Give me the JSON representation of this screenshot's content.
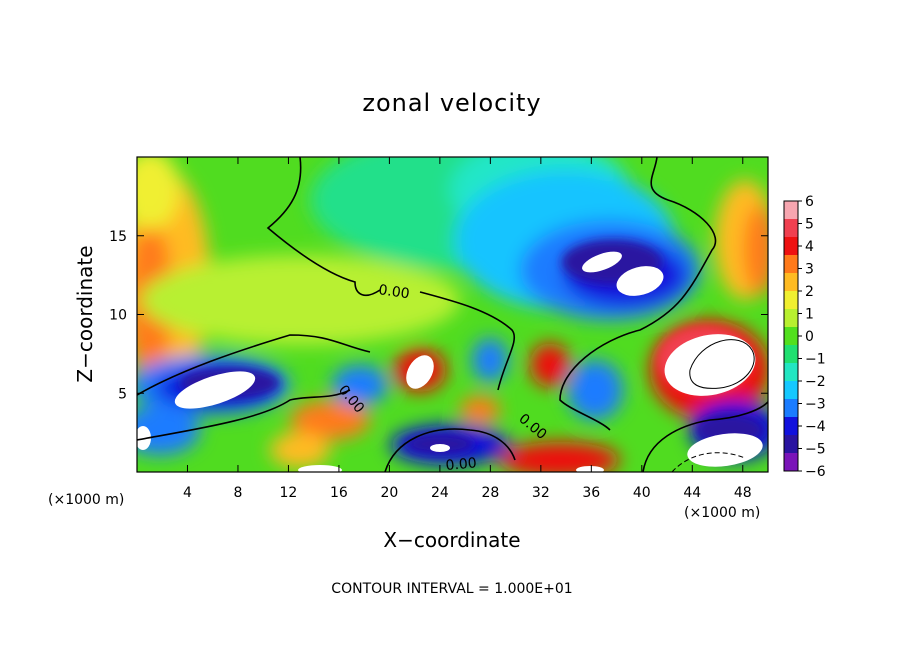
{
  "chart_data": {
    "type": "heatmap",
    "title": "zonal velocity",
    "xlabel": "X−coordinate",
    "ylabel": "Z−coordinate",
    "x_unit_left": "(×1000 m)",
    "x_unit_right": "(×1000 m)",
    "xlim": [
      0,
      50
    ],
    "ylim": [
      0,
      20
    ],
    "x_ticks": [
      "4",
      "8",
      "12",
      "16",
      "20",
      "24",
      "28",
      "32",
      "36",
      "40",
      "44",
      "48"
    ],
    "y_ticks": [
      "5",
      "10",
      "15"
    ],
    "colorbar": {
      "min": -6,
      "max": 6,
      "ticks": [
        "6",
        "5",
        "4",
        "3",
        "2",
        "1",
        "0",
        "−1",
        "−2",
        "−3",
        "−4",
        "−5",
        "−6"
      ],
      "colors": [
        "#f7a6b0",
        "#f04050",
        "#ee1111",
        "#ff7a1a",
        "#ffbb22",
        "#f0ef30",
        "#b8f030",
        "#52e01e",
        "#20e070",
        "#22e6c2",
        "#15c8ff",
        "#1a7cff",
        "#1111dd",
        "#2a14a0",
        "#7a14b8"
      ]
    },
    "contour_labels": [
      "0.00",
      "0.00",
      "0.00",
      "0.00"
    ],
    "footer": "CONTOUR INTERVAL = 1.000E+01",
    "grid": false,
    "colors": {
      "out_of_range": "#ffffff",
      "background": "#ffffff"
    }
  }
}
